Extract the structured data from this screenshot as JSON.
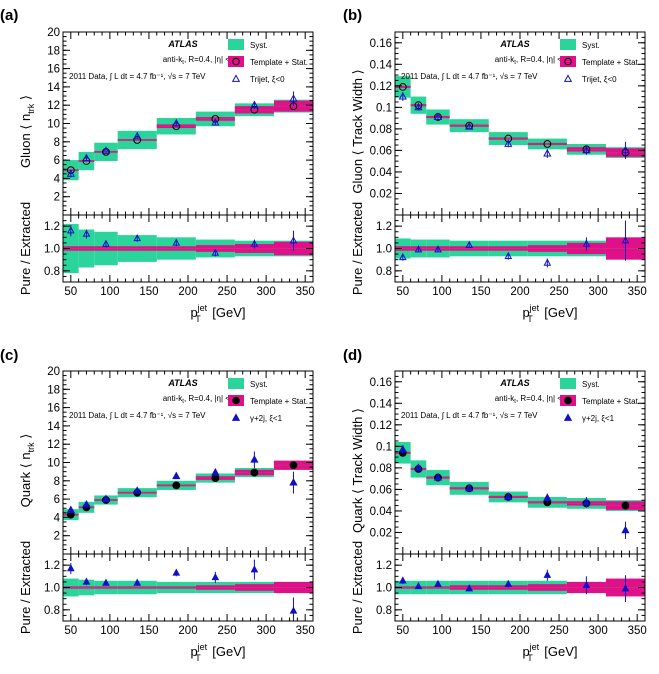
{
  "panel_tags": [
    "(a)",
    "(b)",
    "(c)",
    "(d)"
  ],
  "atlas": {
    "label": "ATLAS",
    "line1_prefix": "anti-k",
    "line1_sub": "t",
    "line1_rest": ", R=0.4, |η| < 0.8",
    "line2": "2011 Data, ∫ L dt = 4.7 fb⁻¹, √s = 7 TeV"
  },
  "legend": {
    "syst": "Syst.",
    "template": "Template + Stat.",
    "trijet": "Trijet, ξ<0",
    "gammajet": "γ+2j, ξ<1"
  },
  "xaxis": {
    "ticks": [
      "50",
      "100",
      "150",
      "200",
      "250",
      "300",
      "350"
    ],
    "label_p": "p",
    "label_sup": "jet",
    "label_sub": "T",
    "label_unit": " [GeV]"
  },
  "ratio_ylabel": "Pure / Extracted",
  "colors": {
    "syst": "#2bd49a",
    "template": "#e0108a",
    "line": "#e0108a",
    "marker": "#1010c8",
    "circle": "#000000"
  },
  "chart_data": [
    {
      "type": "line",
      "id": "a",
      "ylabel_main": "Gluon ⟨ n_trk ⟩",
      "ylabel_text": "Gluon ⟨ n",
      "ylabel_sub": "trk",
      "ylabel_close": " ⟩",
      "ylim": [
        0,
        20
      ],
      "yticks": [
        2,
        4,
        6,
        8,
        10,
        12,
        14,
        16,
        18,
        20
      ],
      "ratio_ylim": [
        0.7,
        1.3
      ],
      "ratio_yticks": [
        "0.8",
        "1.0",
        "1.2"
      ],
      "bins": [
        [
          40,
          60
        ],
        [
          60,
          80
        ],
        [
          80,
          110
        ],
        [
          110,
          160
        ],
        [
          160,
          210
        ],
        [
          210,
          260
        ],
        [
          260,
          310
        ],
        [
          310,
          360
        ]
      ],
      "extracted": [
        4.9,
        5.9,
        6.9,
        8.2,
        9.7,
        10.5,
        11.5,
        11.9
      ],
      "syst": [
        1.1,
        1.0,
        1.0,
        1.0,
        0.9,
        0.8,
        0.7,
        0.7
      ],
      "stat": [
        0.1,
        0.1,
        0.1,
        0.1,
        0.2,
        0.2,
        0.4,
        0.6
      ],
      "pure_marker": "triangle-open",
      "pure": [
        4.5,
        6.2,
        7.0,
        8.6,
        10.0,
        10.1,
        12.0,
        12.7
      ],
      "pure_err": [
        0.4,
        0.3,
        0.2,
        0.2,
        0.3,
        0.3,
        0.4,
        0.8
      ],
      "ratio": [
        1.16,
        1.13,
        1.04,
        1.09,
        1.05,
        0.96,
        1.04,
        1.07
      ],
      "ratio_err": [
        0.05,
        0.04,
        0.03,
        0.03,
        0.03,
        0.03,
        0.04,
        0.09
      ],
      "ratio_syst": [
        0.22,
        0.17,
        0.15,
        0.12,
        0.1,
        0.08,
        0.07,
        0.07
      ],
      "ratio_stat": [
        0.02,
        0.02,
        0.02,
        0.02,
        0.02,
        0.03,
        0.04,
        0.06
      ]
    },
    {
      "type": "line",
      "id": "b",
      "ylabel_text": "Gluon ⟨ Track Width ⟩",
      "ylim": [
        0,
        0.17
      ],
      "yticks": [
        0.02,
        0.04,
        0.06,
        0.08,
        0.1,
        0.12,
        0.14,
        0.16
      ],
      "ratio_ylim": [
        0.7,
        1.3
      ],
      "ratio_yticks": [
        "0.8",
        "1.0",
        "1.2"
      ],
      "bins": [
        [
          40,
          60
        ],
        [
          60,
          80
        ],
        [
          80,
          110
        ],
        [
          110,
          160
        ],
        [
          160,
          210
        ],
        [
          210,
          260
        ],
        [
          260,
          310
        ],
        [
          310,
          360
        ]
      ],
      "extracted": [
        0.119,
        0.102,
        0.091,
        0.083,
        0.071,
        0.066,
        0.061,
        0.058
      ],
      "syst": [
        0.01,
        0.008,
        0.007,
        0.006,
        0.006,
        0.005,
        0.005,
        0.005
      ],
      "stat": [
        0.001,
        0.001,
        0.001,
        0.001,
        0.001,
        0.001,
        0.002,
        0.004
      ],
      "pure_marker": "triangle-open",
      "pure": [
        0.11,
        0.1,
        0.091,
        0.082,
        0.066,
        0.057,
        0.06,
        0.06
      ],
      "pure_err": [
        0.004,
        0.003,
        0.002,
        0.002,
        0.003,
        0.004,
        0.004,
        0.008
      ],
      "ratio": [
        0.92,
        0.99,
        0.99,
        1.03,
        0.93,
        0.87,
        1.04,
        1.07
      ],
      "ratio_err": [
        0.03,
        0.02,
        0.02,
        0.02,
        0.03,
        0.04,
        0.06,
        0.18
      ],
      "ratio_syst": [
        0.09,
        0.08,
        0.08,
        0.07,
        0.07,
        0.07,
        0.07,
        0.07
      ],
      "ratio_stat": [
        0.02,
        0.02,
        0.02,
        0.02,
        0.02,
        0.03,
        0.05,
        0.1
      ]
    },
    {
      "type": "line",
      "id": "c",
      "ylabel_text": "Quark ⟨ n",
      "ylabel_sub": "trk",
      "ylabel_close": " ⟩",
      "ylim": [
        0,
        20
      ],
      "yticks": [
        2,
        4,
        6,
        8,
        10,
        12,
        14,
        16,
        18,
        20
      ],
      "ratio_ylim": [
        0.7,
        1.3
      ],
      "ratio_yticks": [
        "0.8",
        "1.0",
        "1.2"
      ],
      "bins": [
        [
          40,
          60
        ],
        [
          60,
          80
        ],
        [
          80,
          110
        ],
        [
          110,
          160
        ],
        [
          160,
          210
        ],
        [
          210,
          260
        ],
        [
          260,
          310
        ],
        [
          310,
          360
        ]
      ],
      "extracted": [
        4.3,
        5.1,
        5.9,
        6.7,
        7.5,
        8.3,
        8.9,
        9.7
      ],
      "syst": [
        0.6,
        0.6,
        0.5,
        0.5,
        0.5,
        0.5,
        0.5,
        0.5
      ],
      "stat": [
        0.1,
        0.1,
        0.1,
        0.1,
        0.1,
        0.2,
        0.3,
        0.5
      ],
      "pure_marker": "triangle-filled",
      "pure": [
        4.8,
        5.4,
        6.0,
        6.9,
        8.5,
        8.9,
        10.3,
        7.8
      ],
      "pure_err": [
        0.3,
        0.2,
        0.2,
        0.2,
        0.3,
        0.4,
        0.9,
        1.2
      ],
      "ratio": [
        1.17,
        1.05,
        1.04,
        1.04,
        1.13,
        1.09,
        1.16,
        0.79
      ],
      "ratio_err": [
        0.05,
        0.03,
        0.02,
        0.02,
        0.03,
        0.05,
        0.09,
        0.12
      ],
      "ratio_syst": [
        0.08,
        0.07,
        0.06,
        0.06,
        0.05,
        0.05,
        0.05,
        0.05
      ],
      "ratio_stat": [
        0.01,
        0.01,
        0.01,
        0.01,
        0.01,
        0.02,
        0.03,
        0.05
      ]
    },
    {
      "type": "line",
      "id": "d",
      "ylabel_text": "Quark ⟨ Track Width ⟩",
      "ylim": [
        0,
        0.17
      ],
      "yticks": [
        0.02,
        0.04,
        0.06,
        0.08,
        0.1,
        0.12,
        0.14,
        0.16
      ],
      "ratio_ylim": [
        0.7,
        1.3
      ],
      "ratio_yticks": [
        "0.8",
        "1.0",
        "1.2"
      ],
      "bins": [
        [
          40,
          60
        ],
        [
          60,
          80
        ],
        [
          80,
          110
        ],
        [
          110,
          160
        ],
        [
          160,
          210
        ],
        [
          210,
          260
        ],
        [
          260,
          310
        ],
        [
          310,
          360
        ]
      ],
      "extracted": [
        0.094,
        0.079,
        0.071,
        0.061,
        0.053,
        0.048,
        0.047,
        0.045
      ],
      "syst": [
        0.01,
        0.008,
        0.007,
        0.006,
        0.005,
        0.005,
        0.005,
        0.005
      ],
      "stat": [
        0.001,
        0.001,
        0.001,
        0.001,
        0.001,
        0.001,
        0.002,
        0.004
      ],
      "pure_marker": "triangle-filled",
      "pure": [
        0.097,
        0.08,
        0.071,
        0.061,
        0.053,
        0.052,
        0.048,
        0.022
      ],
      "pure_err": [
        0.004,
        0.003,
        0.002,
        0.002,
        0.002,
        0.004,
        0.005,
        0.008
      ],
      "ratio": [
        1.06,
        1.01,
        1.03,
        0.99,
        1.03,
        1.11,
        1.02,
        0.99
      ],
      "ratio_err": [
        0.03,
        0.02,
        0.02,
        0.02,
        0.03,
        0.05,
        0.08,
        0.12
      ],
      "ratio_syst": [
        0.06,
        0.06,
        0.06,
        0.06,
        0.06,
        0.06,
        0.05,
        0.05
      ],
      "ratio_stat": [
        0.01,
        0.01,
        0.01,
        0.02,
        0.02,
        0.03,
        0.05,
        0.08
      ]
    }
  ]
}
